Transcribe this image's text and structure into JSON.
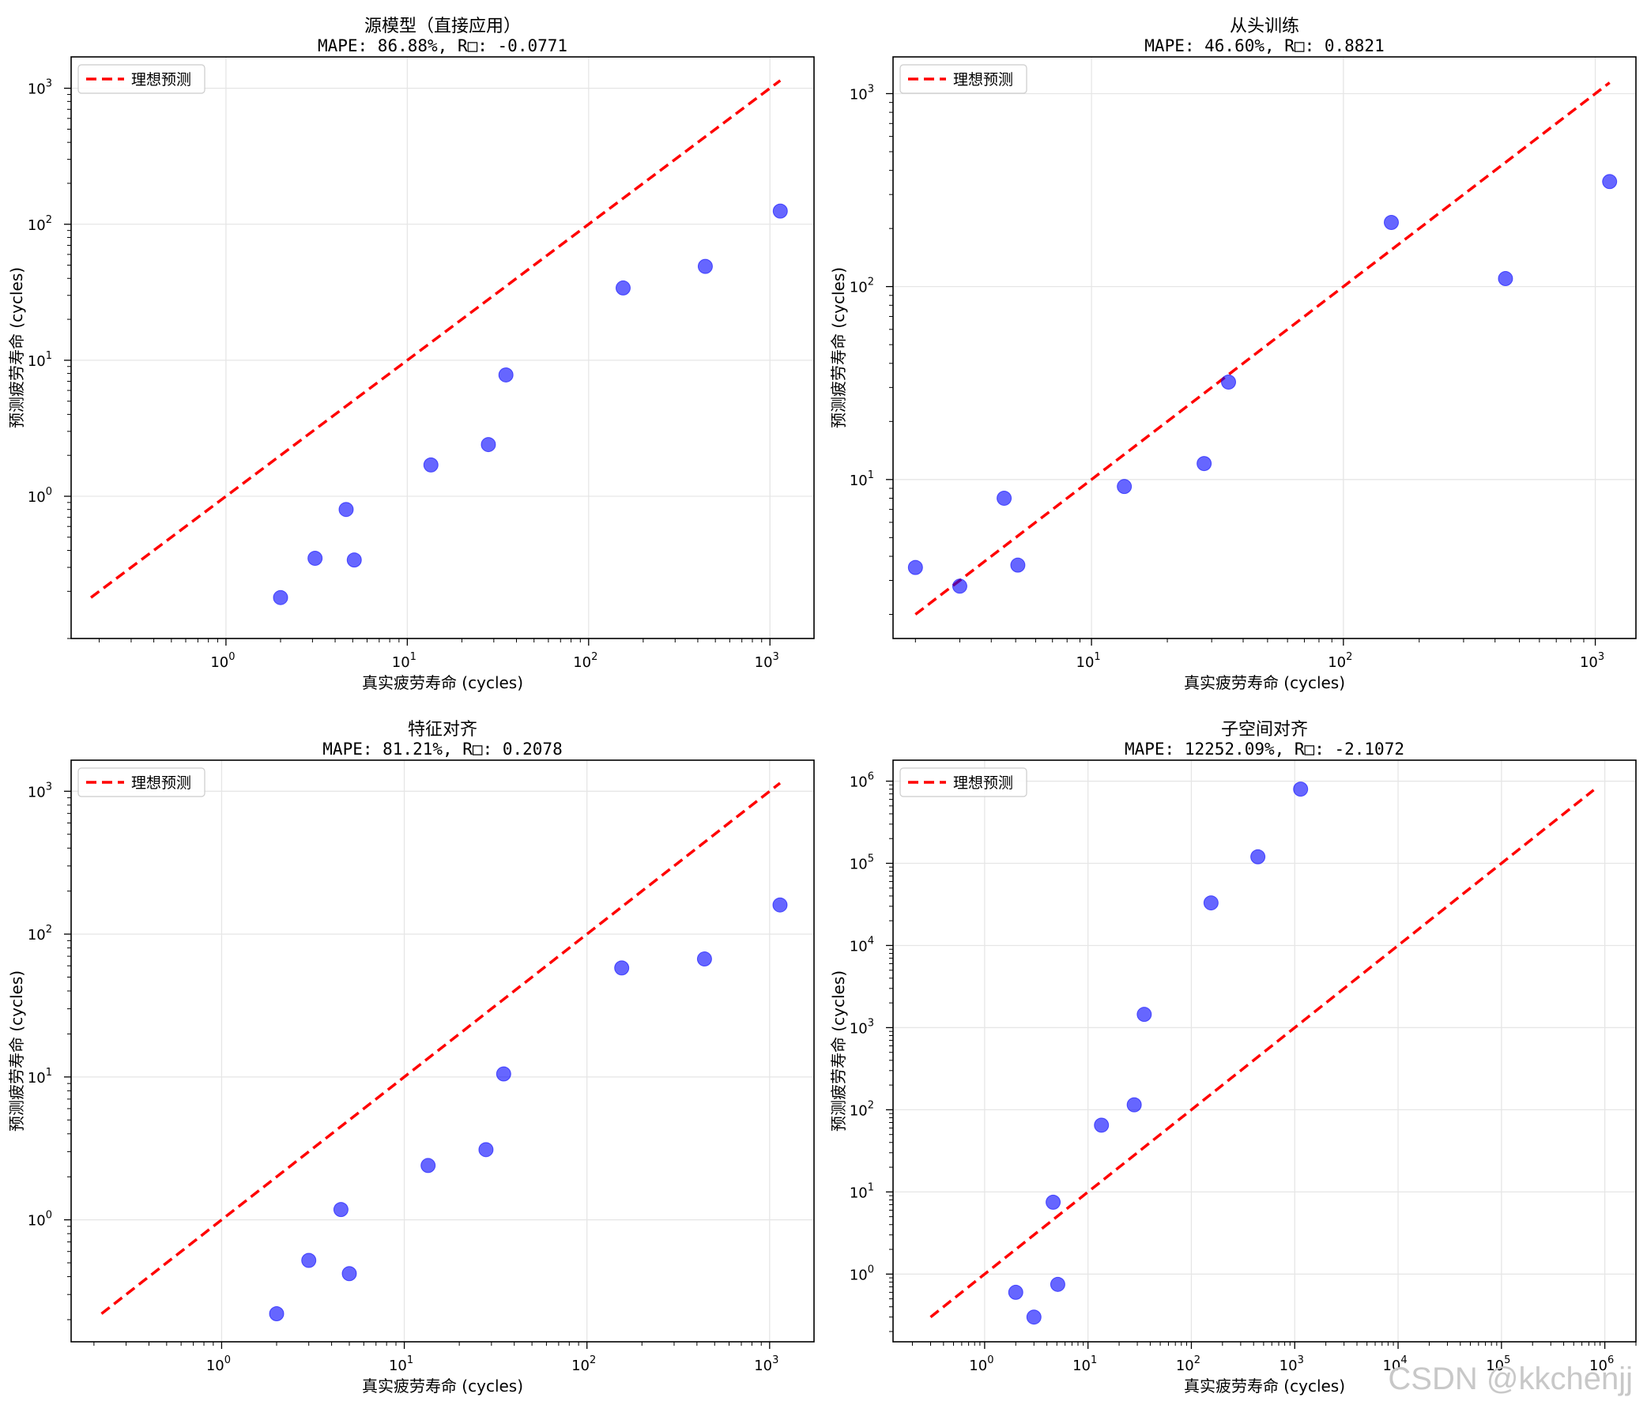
{
  "watermark": "CSDN @kkchenjj",
  "legend_label": "理想预测",
  "colors": {
    "points": "#0000ff",
    "ideal_line": "#ff0000",
    "grid": "#e6e6e6",
    "axes": "#000000"
  },
  "chart_data": [
    {
      "type": "scatter",
      "title": "源模型（直接应用）",
      "subtitle": "MAPE: 86.88%, R□: -0.0771",
      "xlabel": "真实疲劳寿命 (cycles)",
      "ylabel": "预测疲劳寿命 (cycles)",
      "xscale": "log",
      "yscale": "log",
      "xlim": [
        0.14,
        1750
      ],
      "ylim": [
        0.09,
        1700
      ],
      "xticks": [
        {
          "v": 1,
          "e": "0"
        },
        {
          "v": 10,
          "e": "1"
        },
        {
          "v": 100,
          "e": "2"
        },
        {
          "v": 1000,
          "e": "3"
        }
      ],
      "yticks": [
        {
          "v": 1,
          "e": "0"
        },
        {
          "v": 10,
          "e": "1"
        },
        {
          "v": 100,
          "e": "2"
        },
        {
          "v": 1000,
          "e": "3"
        }
      ],
      "grid": true,
      "legend": "top-left",
      "ideal_line": [
        0.18,
        1140
      ],
      "series": [
        {
          "points": [
            [
              2.0,
              0.18
            ],
            [
              3.1,
              0.35
            ],
            [
              4.6,
              0.8
            ],
            [
              5.1,
              0.34
            ],
            [
              13.5,
              1.7
            ],
            [
              28,
              2.4
            ],
            [
              35,
              7.8
            ],
            [
              155,
              34
            ],
            [
              440,
              49
            ],
            [
              1140,
              125
            ]
          ]
        }
      ]
    },
    {
      "type": "scatter",
      "title": "从头训练",
      "subtitle": "MAPE: 46.60%, R□: 0.8821",
      "xlabel": "真实疲劳寿命 (cycles)",
      "ylabel": "预测疲劳寿命 (cycles)",
      "xscale": "log",
      "yscale": "log",
      "xlim": [
        1.63,
        1450
      ],
      "ylim": [
        1.5,
        1550
      ],
      "xticks": [
        {
          "v": 10,
          "e": "1"
        },
        {
          "v": 100,
          "e": "2"
        },
        {
          "v": 1000,
          "e": "3"
        }
      ],
      "yticks": [
        {
          "v": 10,
          "e": "1"
        },
        {
          "v": 100,
          "e": "2"
        },
        {
          "v": 1000,
          "e": "3"
        }
      ],
      "grid": true,
      "legend": "top-left",
      "ideal_line": [
        2.0,
        1140
      ],
      "series": [
        {
          "points": [
            [
              2.0,
              3.5
            ],
            [
              3.0,
              2.8
            ],
            [
              4.5,
              8.0
            ],
            [
              5.1,
              3.6
            ],
            [
              13.5,
              9.2
            ],
            [
              28,
              12.1
            ],
            [
              35,
              32
            ],
            [
              155,
              215
            ],
            [
              440,
              110
            ],
            [
              1140,
              350
            ]
          ]
        }
      ]
    },
    {
      "type": "scatter",
      "title": "特征对齐",
      "subtitle": "MAPE: 81.21%, R□: 0.2078",
      "xlabel": "真实疲劳寿命 (cycles)",
      "ylabel": "预测疲劳寿命 (cycles)",
      "xscale": "log",
      "yscale": "log",
      "xlim": [
        0.15,
        1750
      ],
      "ylim": [
        0.14,
        1650
      ],
      "xticks": [
        {
          "v": 1,
          "e": "0"
        },
        {
          "v": 10,
          "e": "1"
        },
        {
          "v": 100,
          "e": "2"
        },
        {
          "v": 1000,
          "e": "3"
        }
      ],
      "yticks": [
        {
          "v": 1,
          "e": "0"
        },
        {
          "v": 10,
          "e": "1"
        },
        {
          "v": 100,
          "e": "2"
        },
        {
          "v": 1000,
          "e": "3"
        }
      ],
      "grid": true,
      "legend": "top-left",
      "ideal_line": [
        0.22,
        1140
      ],
      "series": [
        {
          "points": [
            [
              2.0,
              0.22
            ],
            [
              3.0,
              0.52
            ],
            [
              4.5,
              1.18
            ],
            [
              5.0,
              0.42
            ],
            [
              13.5,
              2.4
            ],
            [
              28,
              3.1
            ],
            [
              35,
              10.5
            ],
            [
              155,
              58
            ],
            [
              440,
              67
            ],
            [
              1140,
              160
            ]
          ]
        }
      ]
    },
    {
      "type": "scatter",
      "title": "子空间对齐",
      "subtitle": "MAPE: 12252.09%, R□: -2.1072",
      "xlabel": "真实疲劳寿命 (cycles)",
      "ylabel": "预测疲劳寿命 (cycles)",
      "xscale": "log",
      "yscale": "log",
      "xlim": [
        0.13,
        2000000
      ],
      "ylim": [
        0.15,
        1800000
      ],
      "xticks": [
        {
          "v": 1,
          "e": "0"
        },
        {
          "v": 10,
          "e": "1"
        },
        {
          "v": 100,
          "e": "2"
        },
        {
          "v": 1000,
          "e": "3"
        },
        {
          "v": 10000,
          "e": "4"
        },
        {
          "v": 100000,
          "e": "5"
        },
        {
          "v": 1000000,
          "e": "6"
        }
      ],
      "yticks": [
        {
          "v": 1,
          "e": "0"
        },
        {
          "v": 10,
          "e": "1"
        },
        {
          "v": 100,
          "e": "2"
        },
        {
          "v": 1000,
          "e": "3"
        },
        {
          "v": 10000,
          "e": "4"
        },
        {
          "v": 100000,
          "e": "5"
        },
        {
          "v": 1000000,
          "e": "6"
        }
      ],
      "grid": true,
      "legend": "top-left",
      "ideal_line": [
        0.3,
        780000
      ],
      "series": [
        {
          "points": [
            [
              2.0,
              0.6
            ],
            [
              3.0,
              0.3
            ],
            [
              4.6,
              7.5
            ],
            [
              5.1,
              0.75
            ],
            [
              13.5,
              65
            ],
            [
              28,
              115
            ],
            [
              35,
              1450
            ],
            [
              155,
              33000
            ],
            [
              440,
              120000
            ],
            [
              1140,
              800000
            ]
          ]
        }
      ]
    }
  ]
}
